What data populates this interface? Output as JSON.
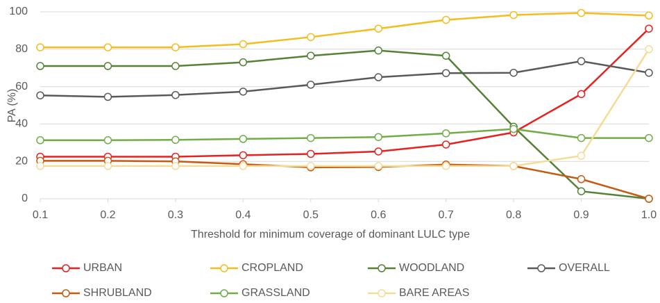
{
  "chart_data": {
    "type": "line",
    "x_label": "Threshold for minimum coverage of dominant LULC type",
    "y_label": "PA (%)",
    "x": [
      0.1,
      0.2,
      0.3,
      0.4,
      0.5,
      0.6,
      0.7,
      0.8,
      0.9,
      1.0
    ],
    "xlim": [
      0.1,
      1.0
    ],
    "xticks": [
      0.1,
      0.2,
      0.3,
      0.4,
      0.5,
      0.6,
      0.7,
      0.8,
      0.9,
      {
        "value": 1.0,
        "label": "1.0"
      }
    ],
    "ylim": [
      0,
      100
    ],
    "yticks": [
      0,
      20,
      40,
      60,
      80,
      100
    ],
    "grid": true,
    "legend": "bottom",
    "series": [
      {
        "name": "URBAN",
        "color": "#e8201e",
        "values": [
          22.5,
          22.5,
          22.5,
          23.3,
          24,
          25.3,
          29,
          35.5,
          56,
          91
        ]
      },
      {
        "name": "CROPLAND",
        "color": "#f2bd1d",
        "values": [
          81,
          81,
          81,
          82.7,
          86.5,
          91,
          95.7,
          98.3,
          99.4,
          98
        ]
      },
      {
        "name": "WOODLAND",
        "color": "#548235",
        "values": [
          71,
          71,
          71,
          73,
          76.5,
          79.3,
          76.5,
          38.5,
          4,
          0
        ]
      },
      {
        "name": "OVERALL",
        "color": "#595959",
        "values": [
          55.3,
          54.5,
          55.5,
          57.3,
          61,
          65,
          67.2,
          67.4,
          73.6,
          67.4
        ]
      },
      {
        "name": "SHRUBLAND",
        "color": "#c55a11",
        "values": [
          20.3,
          20.3,
          20,
          18.5,
          16.8,
          17,
          18.3,
          17.5,
          10.5,
          0
        ]
      },
      {
        "name": "GRASSLAND",
        "color": "#70ad47",
        "values": [
          31.3,
          31.3,
          31.5,
          32,
          32.5,
          33,
          35,
          37.3,
          32.5,
          32.5
        ]
      },
      {
        "name": "BARE AREAS",
        "color": "#f5dc96",
        "values": [
          17.5,
          17.5,
          17.5,
          17.5,
          17.5,
          17.5,
          17.5,
          17.5,
          23,
          80
        ]
      }
    ]
  }
}
